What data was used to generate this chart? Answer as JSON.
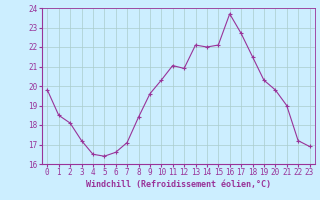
{
  "x": [
    0,
    1,
    2,
    3,
    4,
    5,
    6,
    7,
    8,
    9,
    10,
    11,
    12,
    13,
    14,
    15,
    16,
    17,
    18,
    19,
    20,
    21,
    22,
    23
  ],
  "y": [
    19.8,
    18.5,
    18.1,
    17.2,
    16.5,
    16.4,
    16.6,
    17.1,
    18.4,
    19.6,
    20.3,
    21.05,
    20.9,
    22.1,
    22.0,
    22.1,
    23.7,
    22.7,
    21.5,
    20.3,
    19.8,
    19.0,
    17.2,
    16.9
  ],
  "ylim": [
    16,
    24
  ],
  "xlim": [
    0,
    23
  ],
  "yticks": [
    16,
    17,
    18,
    19,
    20,
    21,
    22,
    23,
    24
  ],
  "xticks": [
    0,
    1,
    2,
    3,
    4,
    5,
    6,
    7,
    8,
    9,
    10,
    11,
    12,
    13,
    14,
    15,
    16,
    17,
    18,
    19,
    20,
    21,
    22,
    23
  ],
  "xlabel": "Windchill (Refroidissement éolien,°C)",
  "line_color": "#993399",
  "marker": "+",
  "bg_color": "#cceeff",
  "grid_color": "#aacccc",
  "tick_label_color": "#993399",
  "xlabel_color": "#993399",
  "axis_fontsize": 5.5
}
